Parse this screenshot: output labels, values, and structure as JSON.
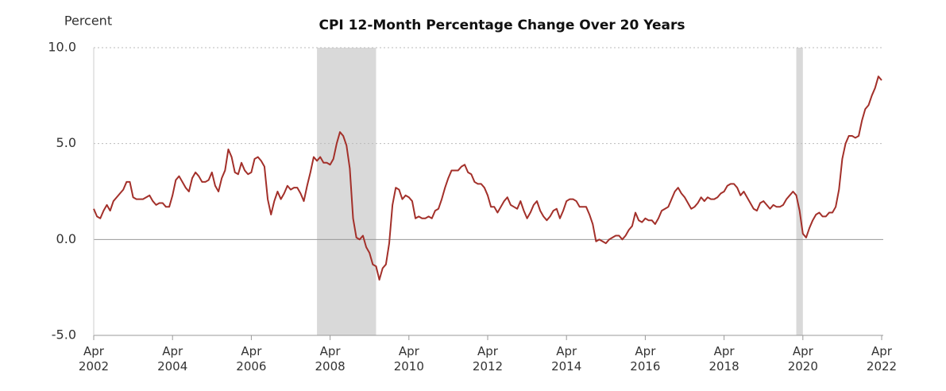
{
  "chart_data": {
    "type": "line",
    "title": "CPI 12-Month Percentage Change Over 20 Years",
    "y_label": "Percent",
    "x": [
      "2002-04",
      "2002-05",
      "2002-06",
      "2002-07",
      "2002-08",
      "2002-09",
      "2002-10",
      "2002-11",
      "2002-12",
      "2003-01",
      "2003-02",
      "2003-03",
      "2003-04",
      "2003-05",
      "2003-06",
      "2003-07",
      "2003-08",
      "2003-09",
      "2003-10",
      "2003-11",
      "2003-12",
      "2004-01",
      "2004-02",
      "2004-03",
      "2004-04",
      "2004-05",
      "2004-06",
      "2004-07",
      "2004-08",
      "2004-09",
      "2004-10",
      "2004-11",
      "2004-12",
      "2005-01",
      "2005-02",
      "2005-03",
      "2005-04",
      "2005-05",
      "2005-06",
      "2005-07",
      "2005-08",
      "2005-09",
      "2005-10",
      "2005-11",
      "2005-12",
      "2006-01",
      "2006-02",
      "2006-03",
      "2006-04",
      "2006-05",
      "2006-06",
      "2006-07",
      "2006-08",
      "2006-09",
      "2006-10",
      "2006-11",
      "2006-12",
      "2007-01",
      "2007-02",
      "2007-03",
      "2007-04",
      "2007-05",
      "2007-06",
      "2007-07",
      "2007-08",
      "2007-09",
      "2007-10",
      "2007-11",
      "2007-12",
      "2008-01",
      "2008-02",
      "2008-03",
      "2008-04",
      "2008-05",
      "2008-06",
      "2008-07",
      "2008-08",
      "2008-09",
      "2008-10",
      "2008-11",
      "2008-12",
      "2009-01",
      "2009-02",
      "2009-03",
      "2009-04",
      "2009-05",
      "2009-06",
      "2009-07",
      "2009-08",
      "2009-09",
      "2009-10",
      "2009-11",
      "2009-12",
      "2010-01",
      "2010-02",
      "2010-03",
      "2010-04",
      "2010-05",
      "2010-06",
      "2010-07",
      "2010-08",
      "2010-09",
      "2010-10",
      "2010-11",
      "2010-12",
      "2011-01",
      "2011-02",
      "2011-03",
      "2011-04",
      "2011-05",
      "2011-06",
      "2011-07",
      "2011-08",
      "2011-09",
      "2011-10",
      "2011-11",
      "2011-12",
      "2012-01",
      "2012-02",
      "2012-03",
      "2012-04",
      "2012-05",
      "2012-06",
      "2012-07",
      "2012-08",
      "2012-09",
      "2012-10",
      "2012-11",
      "2012-12",
      "2013-01",
      "2013-02",
      "2013-03",
      "2013-04",
      "2013-05",
      "2013-06",
      "2013-07",
      "2013-08",
      "2013-09",
      "2013-10",
      "2013-11",
      "2013-12",
      "2014-01",
      "2014-02",
      "2014-03",
      "2014-04",
      "2014-05",
      "2014-06",
      "2014-07",
      "2014-08",
      "2014-09",
      "2014-10",
      "2014-11",
      "2014-12",
      "2015-01",
      "2015-02",
      "2015-03",
      "2015-04",
      "2015-05",
      "2015-06",
      "2015-07",
      "2015-08",
      "2015-09",
      "2015-10",
      "2015-11",
      "2015-12",
      "2016-01",
      "2016-02",
      "2016-03",
      "2016-04",
      "2016-05",
      "2016-06",
      "2016-07",
      "2016-08",
      "2016-09",
      "2016-10",
      "2016-11",
      "2016-12",
      "2017-01",
      "2017-02",
      "2017-03",
      "2017-04",
      "2017-05",
      "2017-06",
      "2017-07",
      "2017-08",
      "2017-09",
      "2017-10",
      "2017-11",
      "2017-12",
      "2018-01",
      "2018-02",
      "2018-03",
      "2018-04",
      "2018-05",
      "2018-06",
      "2018-07",
      "2018-08",
      "2018-09",
      "2018-10",
      "2018-11",
      "2018-12",
      "2019-01",
      "2019-02",
      "2019-03",
      "2019-04",
      "2019-05",
      "2019-06",
      "2019-07",
      "2019-08",
      "2019-09",
      "2019-10",
      "2019-11",
      "2019-12",
      "2020-01",
      "2020-02",
      "2020-03",
      "2020-04",
      "2020-05",
      "2020-06",
      "2020-07",
      "2020-08",
      "2020-09",
      "2020-10",
      "2020-11",
      "2020-12",
      "2021-01",
      "2021-02",
      "2021-03",
      "2021-04",
      "2021-05",
      "2021-06",
      "2021-07",
      "2021-08",
      "2021-09",
      "2021-10",
      "2021-11",
      "2021-12",
      "2022-01",
      "2022-02",
      "2022-03",
      "2022-04"
    ],
    "series": [
      {
        "name": "CPI",
        "color": "#a3302a",
        "values": [
          1.6,
          1.2,
          1.1,
          1.5,
          1.8,
          1.5,
          2.0,
          2.2,
          2.4,
          2.6,
          3.0,
          3.0,
          2.2,
          2.1,
          2.1,
          2.1,
          2.2,
          2.3,
          2.0,
          1.8,
          1.9,
          1.9,
          1.7,
          1.7,
          2.3,
          3.1,
          3.3,
          3.0,
          2.7,
          2.5,
          3.2,
          3.5,
          3.3,
          3.0,
          3.0,
          3.1,
          3.5,
          2.8,
          2.5,
          3.2,
          3.6,
          4.7,
          4.3,
          3.5,
          3.4,
          4.0,
          3.6,
          3.4,
          3.5,
          4.2,
          4.3,
          4.1,
          3.8,
          2.1,
          1.3,
          2.0,
          2.5,
          2.1,
          2.4,
          2.8,
          2.6,
          2.7,
          2.7,
          2.4,
          2.0,
          2.8,
          3.5,
          4.3,
          4.1,
          4.3,
          4.0,
          4.0,
          3.9,
          4.2,
          5.0,
          5.6,
          5.4,
          4.9,
          3.7,
          1.1,
          0.1,
          0.0,
          0.2,
          -0.4,
          -0.7,
          -1.3,
          -1.4,
          -2.1,
          -1.5,
          -1.3,
          -0.2,
          1.8,
          2.7,
          2.6,
          2.1,
          2.3,
          2.2,
          2.0,
          1.1,
          1.2,
          1.1,
          1.1,
          1.2,
          1.1,
          1.5,
          1.6,
          2.1,
          2.7,
          3.2,
          3.6,
          3.6,
          3.6,
          3.8,
          3.9,
          3.5,
          3.4,
          3.0,
          2.9,
          2.9,
          2.7,
          2.3,
          1.7,
          1.7,
          1.4,
          1.7,
          2.0,
          2.2,
          1.8,
          1.7,
          1.6,
          2.0,
          1.5,
          1.1,
          1.4,
          1.8,
          2.0,
          1.5,
          1.2,
          1.0,
          1.2,
          1.5,
          1.6,
          1.1,
          1.5,
          2.0,
          2.1,
          2.1,
          2.0,
          1.7,
          1.7,
          1.7,
          1.3,
          0.8,
          -0.1,
          0.0,
          -0.1,
          -0.2,
          0.0,
          0.1,
          0.2,
          0.2,
          0.0,
          0.2,
          0.5,
          0.7,
          1.4,
          1.0,
          0.9,
          1.1,
          1.0,
          1.0,
          0.8,
          1.1,
          1.5,
          1.6,
          1.7,
          2.1,
          2.5,
          2.7,
          2.4,
          2.2,
          1.9,
          1.6,
          1.7,
          1.9,
          2.2,
          2.0,
          2.2,
          2.1,
          2.1,
          2.2,
          2.4,
          2.5,
          2.8,
          2.9,
          2.9,
          2.7,
          2.3,
          2.5,
          2.2,
          1.9,
          1.6,
          1.5,
          1.9,
          2.0,
          1.8,
          1.6,
          1.8,
          1.7,
          1.7,
          1.8,
          2.1,
          2.3,
          2.5,
          2.3,
          1.5,
          0.3,
          0.1,
          0.6,
          1.0,
          1.3,
          1.4,
          1.2,
          1.2,
          1.4,
          1.4,
          1.7,
          2.6,
          4.2,
          5.0,
          5.4,
          5.4,
          5.3,
          5.4,
          6.2,
          6.8,
          7.0,
          7.5,
          7.9,
          8.5,
          8.3
        ]
      }
    ],
    "shaded_periods": [
      [
        "2007-12",
        "2009-06"
      ],
      [
        "2020-02",
        "2020-04"
      ]
    ],
    "shade_color": "#d9d9d9",
    "xlim": [
      "2002-04",
      "2022-04"
    ],
    "xticks": [
      {
        "value": "2002-04",
        "label": "Apr 2002"
      },
      {
        "value": "2004-04",
        "label": "Apr 2004"
      },
      {
        "value": "2006-04",
        "label": "Apr 2006"
      },
      {
        "value": "2008-04",
        "label": "Apr 2008"
      },
      {
        "value": "2010-04",
        "label": "Apr 2010"
      },
      {
        "value": "2012-04",
        "label": "Apr 2012"
      },
      {
        "value": "2014-04",
        "label": "Apr 2014"
      },
      {
        "value": "2016-04",
        "label": "Apr 2016"
      },
      {
        "value": "2018-04",
        "label": "Apr 2018"
      },
      {
        "value": "2020-04",
        "label": "Apr 2020"
      },
      {
        "value": "2022-04",
        "label": "Apr 2022"
      }
    ],
    "ylim": [
      -5,
      10
    ],
    "yticks": [
      {
        "value": 10,
        "label": "10.0"
      },
      {
        "value": 5,
        "label": "5.0"
      },
      {
        "value": 0,
        "label": "0.0"
      },
      {
        "value": -5,
        "label": "-5.0"
      }
    ],
    "grid": true
  }
}
